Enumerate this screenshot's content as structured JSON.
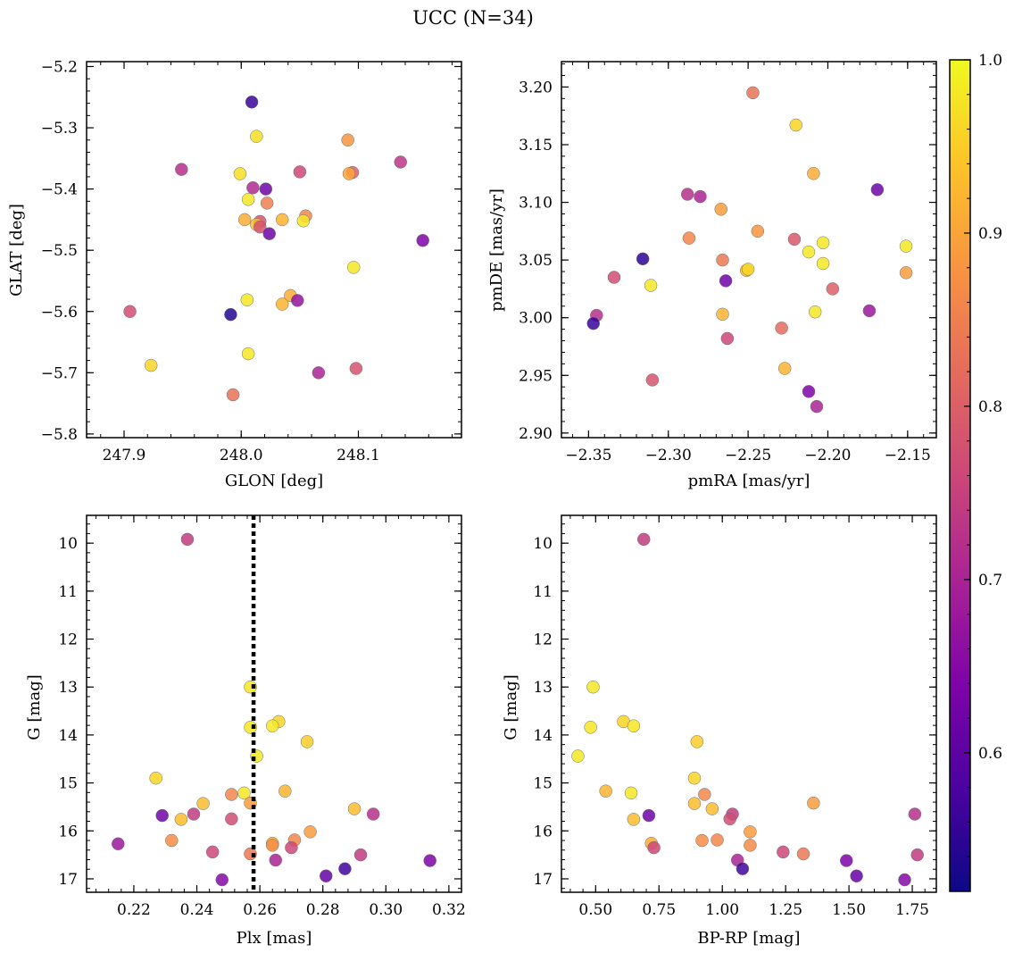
{
  "figure": {
    "title": "UCC (N=34)"
  },
  "colorbar": {
    "min": 0.52,
    "max": 1.0,
    "ticks": [
      0.6,
      0.7,
      0.8,
      0.9,
      1.0
    ],
    "tick_labels": [
      "0.6",
      "0.7",
      "0.8",
      "0.9",
      "1.0"
    ],
    "colormap": "plasma"
  },
  "chart_data": [
    {
      "type": "scatter",
      "title": "",
      "xlabel": "GLON [deg]",
      "ylabel": "GLAT [deg]",
      "xlim": [
        247.868,
        248.188
      ],
      "ylim": [
        -5.806,
        -5.192
      ],
      "xticks": [
        247.9,
        248.0,
        248.1
      ],
      "xtick_labels": [
        "247.9",
        "248.0",
        "248.1"
      ],
      "yticks": [
        -5.8,
        -5.7,
        -5.6,
        -5.5,
        -5.4,
        -5.3,
        -5.2
      ],
      "ytick_labels": [
        "−5.8",
        "−5.7",
        "−5.6",
        "−5.5",
        "−5.4",
        "−5.3",
        "−5.2"
      ],
      "y_inverted": false,
      "points": [
        {
          "x": 248.009,
          "y": -5.258,
          "c": 0.56
        },
        {
          "x": 248.013,
          "y": -5.314,
          "c": 0.97
        },
        {
          "x": 248.091,
          "y": -5.32,
          "c": 0.88
        },
        {
          "x": 248.136,
          "y": -5.356,
          "c": 0.73
        },
        {
          "x": 247.949,
          "y": -5.368,
          "c": 0.72
        },
        {
          "x": 248.05,
          "y": -5.372,
          "c": 0.76
        },
        {
          "x": 248.095,
          "y": -5.373,
          "c": 0.8
        },
        {
          "x": 248.092,
          "y": -5.375,
          "c": 0.9
        },
        {
          "x": 247.999,
          "y": -5.375,
          "c": 0.97
        },
        {
          "x": 248.01,
          "y": -5.398,
          "c": 0.71
        },
        {
          "x": 248.021,
          "y": -5.4,
          "c": 0.62
        },
        {
          "x": 248.006,
          "y": -5.417,
          "c": 0.98
        },
        {
          "x": 248.022,
          "y": -5.423,
          "c": 0.85
        },
        {
          "x": 248.055,
          "y": -5.444,
          "c": 0.86
        },
        {
          "x": 248.003,
          "y": -5.45,
          "c": 0.91
        },
        {
          "x": 248.035,
          "y": -5.45,
          "c": 0.92
        },
        {
          "x": 248.053,
          "y": -5.452,
          "c": 0.98
        },
        {
          "x": 248.016,
          "y": -5.453,
          "c": 0.78
        },
        {
          "x": 248.013,
          "y": -5.458,
          "c": 0.93
        },
        {
          "x": 248.016,
          "y": -5.462,
          "c": 0.78
        },
        {
          "x": 248.024,
          "y": -5.473,
          "c": 0.62
        },
        {
          "x": 248.155,
          "y": -5.484,
          "c": 0.64
        },
        {
          "x": 248.096,
          "y": -5.528,
          "c": 0.98
        },
        {
          "x": 248.042,
          "y": -5.574,
          "c": 0.91
        },
        {
          "x": 248.005,
          "y": -5.581,
          "c": 0.98
        },
        {
          "x": 248.048,
          "y": -5.582,
          "c": 0.67
        },
        {
          "x": 248.035,
          "y": -5.588,
          "c": 0.92
        },
        {
          "x": 247.905,
          "y": -5.6,
          "c": 0.77
        },
        {
          "x": 247.991,
          "y": -5.605,
          "c": 0.54
        },
        {
          "x": 248.006,
          "y": -5.669,
          "c": 0.98
        },
        {
          "x": 247.923,
          "y": -5.688,
          "c": 0.96
        },
        {
          "x": 248.098,
          "y": -5.693,
          "c": 0.78
        },
        {
          "x": 248.066,
          "y": -5.7,
          "c": 0.7
        },
        {
          "x": 247.993,
          "y": -5.736,
          "c": 0.83
        }
      ]
    },
    {
      "type": "scatter",
      "title": "",
      "xlabel": "pmRA [mas/yr]",
      "ylabel": "pmDE [mas/yr]",
      "xlim": [
        -2.367,
        -2.132
      ],
      "ylim": [
        2.896,
        3.222
      ],
      "xticks": [
        -2.35,
        -2.3,
        -2.25,
        -2.2,
        -2.15
      ],
      "xtick_labels": [
        "−2.35",
        "−2.30",
        "−2.25",
        "−2.20",
        "−2.15"
      ],
      "yticks": [
        2.9,
        2.95,
        3.0,
        3.05,
        3.1,
        3.15,
        3.2
      ],
      "ytick_labels": [
        "2.90",
        "2.95",
        "3.00",
        "3.05",
        "3.10",
        "3.15",
        "3.20"
      ],
      "y_inverted": false,
      "points": [
        {
          "x": -2.247,
          "y": 3.195,
          "c": 0.83
        },
        {
          "x": -2.22,
          "y": 3.167,
          "c": 0.96
        },
        {
          "x": -2.209,
          "y": 3.125,
          "c": 0.91
        },
        {
          "x": -2.169,
          "y": 3.111,
          "c": 0.62
        },
        {
          "x": -2.288,
          "y": 3.107,
          "c": 0.72
        },
        {
          "x": -2.28,
          "y": 3.105,
          "c": 0.7
        },
        {
          "x": -2.267,
          "y": 3.094,
          "c": 0.89
        },
        {
          "x": -2.244,
          "y": 3.075,
          "c": 0.88
        },
        {
          "x": -2.287,
          "y": 3.069,
          "c": 0.86
        },
        {
          "x": -2.221,
          "y": 3.068,
          "c": 0.79
        },
        {
          "x": -2.203,
          "y": 3.065,
          "c": 0.98
        },
        {
          "x": -2.151,
          "y": 3.062,
          "c": 0.98
        },
        {
          "x": -2.212,
          "y": 3.057,
          "c": 0.98
        },
        {
          "x": -2.316,
          "y": 3.051,
          "c": 0.55
        },
        {
          "x": -2.266,
          "y": 3.05,
          "c": 0.84
        },
        {
          "x": -2.203,
          "y": 3.047,
          "c": 0.98
        },
        {
          "x": -2.251,
          "y": 3.041,
          "c": 0.93
        },
        {
          "x": -2.25,
          "y": 3.042,
          "c": 0.96
        },
        {
          "x": -2.151,
          "y": 3.039,
          "c": 0.89
        },
        {
          "x": -2.334,
          "y": 3.035,
          "c": 0.77
        },
        {
          "x": -2.264,
          "y": 3.032,
          "c": 0.62
        },
        {
          "x": -2.311,
          "y": 3.028,
          "c": 0.98
        },
        {
          "x": -2.197,
          "y": 3.025,
          "c": 0.8
        },
        {
          "x": -2.174,
          "y": 3.006,
          "c": 0.68
        },
        {
          "x": -2.208,
          "y": 3.005,
          "c": 0.98
        },
        {
          "x": -2.266,
          "y": 3.003,
          "c": 0.92
        },
        {
          "x": -2.345,
          "y": 3.002,
          "c": 0.72
        },
        {
          "x": -2.347,
          "y": 2.995,
          "c": 0.56
        },
        {
          "x": -2.229,
          "y": 2.991,
          "c": 0.82
        },
        {
          "x": -2.263,
          "y": 2.982,
          "c": 0.76
        },
        {
          "x": -2.227,
          "y": 2.956,
          "c": 0.92
        },
        {
          "x": -2.31,
          "y": 2.946,
          "c": 0.78
        },
        {
          "x": -2.212,
          "y": 2.936,
          "c": 0.64
        },
        {
          "x": -2.207,
          "y": 2.923,
          "c": 0.7
        }
      ]
    },
    {
      "type": "scatter",
      "title": "",
      "xlabel": "Plx [mas]",
      "ylabel": "G [mag]",
      "xlim": [
        0.205,
        0.324
      ],
      "ylim": [
        17.28,
        9.42
      ],
      "xticks": [
        0.22,
        0.24,
        0.26,
        0.28,
        0.3,
        0.32
      ],
      "xtick_labels": [
        "0.22",
        "0.24",
        "0.26",
        "0.28",
        "0.30",
        "0.32"
      ],
      "yticks": [
        10,
        11,
        12,
        13,
        14,
        15,
        16,
        17
      ],
      "ytick_labels": [
        "10",
        "11",
        "12",
        "13",
        "14",
        "15",
        "16",
        "17"
      ],
      "y_inverted": true,
      "vline": {
        "x": 0.258,
        "style": "dotted"
      },
      "points": [
        {
          "x": 0.237,
          "y": 9.92,
          "c": 0.74
        },
        {
          "x": 0.257,
          "y": 13.0,
          "c": 0.98
        },
        {
          "x": 0.266,
          "y": 13.72,
          "c": 0.96
        },
        {
          "x": 0.264,
          "y": 13.81,
          "c": 0.98
        },
        {
          "x": 0.257,
          "y": 13.84,
          "c": 0.98
        },
        {
          "x": 0.275,
          "y": 14.14,
          "c": 0.95
        },
        {
          "x": 0.259,
          "y": 14.44,
          "c": 0.98
        },
        {
          "x": 0.227,
          "y": 14.9,
          "c": 0.96
        },
        {
          "x": 0.268,
          "y": 15.17,
          "c": 0.92
        },
        {
          "x": 0.255,
          "y": 15.21,
          "c": 0.98
        },
        {
          "x": 0.251,
          "y": 15.24,
          "c": 0.86
        },
        {
          "x": 0.257,
          "y": 15.42,
          "c": 0.89
        },
        {
          "x": 0.242,
          "y": 15.43,
          "c": 0.93
        },
        {
          "x": 0.29,
          "y": 15.54,
          "c": 0.93
        },
        {
          "x": 0.229,
          "y": 15.68,
          "c": 0.62
        },
        {
          "x": 0.239,
          "y": 15.65,
          "c": 0.74
        },
        {
          "x": 0.296,
          "y": 15.65,
          "c": 0.72
        },
        {
          "x": 0.235,
          "y": 15.76,
          "c": 0.93
        },
        {
          "x": 0.251,
          "y": 15.75,
          "c": 0.77
        },
        {
          "x": 0.276,
          "y": 16.02,
          "c": 0.89
        },
        {
          "x": 0.232,
          "y": 16.2,
          "c": 0.87
        },
        {
          "x": 0.271,
          "y": 16.19,
          "c": 0.86
        },
        {
          "x": 0.264,
          "y": 16.26,
          "c": 0.91
        },
        {
          "x": 0.264,
          "y": 16.3,
          "c": 0.87
        },
        {
          "x": 0.215,
          "y": 16.27,
          "c": 0.68
        },
        {
          "x": 0.27,
          "y": 16.35,
          "c": 0.76
        },
        {
          "x": 0.245,
          "y": 16.44,
          "c": 0.76
        },
        {
          "x": 0.257,
          "y": 16.48,
          "c": 0.84
        },
        {
          "x": 0.292,
          "y": 16.5,
          "c": 0.74
        },
        {
          "x": 0.265,
          "y": 16.61,
          "c": 0.7
        },
        {
          "x": 0.314,
          "y": 16.62,
          "c": 0.64
        },
        {
          "x": 0.287,
          "y": 16.79,
          "c": 0.57
        },
        {
          "x": 0.281,
          "y": 16.94,
          "c": 0.61
        },
        {
          "x": 0.248,
          "y": 17.02,
          "c": 0.65
        }
      ]
    },
    {
      "type": "scatter",
      "title": "",
      "xlabel": "BP-RP [mag]",
      "ylabel": "G [mag]",
      "xlim": [
        0.365,
        1.845
      ],
      "ylim": [
        17.28,
        9.42
      ],
      "xticks": [
        0.5,
        0.75,
        1.0,
        1.25,
        1.5,
        1.75
      ],
      "xtick_labels": [
        "0.50",
        "0.75",
        "1.00",
        "1.25",
        "1.50",
        "1.75"
      ],
      "yticks": [
        10,
        11,
        12,
        13,
        14,
        15,
        16,
        17
      ],
      "ytick_labels": [
        "10",
        "11",
        "12",
        "13",
        "14",
        "15",
        "16",
        "17"
      ],
      "y_inverted": true,
      "points": [
        {
          "x": 0.69,
          "y": 9.92,
          "c": 0.74
        },
        {
          "x": 0.49,
          "y": 13.0,
          "c": 0.98
        },
        {
          "x": 0.61,
          "y": 13.72,
          "c": 0.96
        },
        {
          "x": 0.65,
          "y": 13.81,
          "c": 0.98
        },
        {
          "x": 0.48,
          "y": 13.84,
          "c": 0.98
        },
        {
          "x": 0.9,
          "y": 14.14,
          "c": 0.95
        },
        {
          "x": 0.43,
          "y": 14.44,
          "c": 0.98
        },
        {
          "x": 0.89,
          "y": 14.9,
          "c": 0.96
        },
        {
          "x": 0.54,
          "y": 15.17,
          "c": 0.92
        },
        {
          "x": 0.64,
          "y": 15.21,
          "c": 0.98
        },
        {
          "x": 0.93,
          "y": 15.24,
          "c": 0.86
        },
        {
          "x": 1.36,
          "y": 15.42,
          "c": 0.89
        },
        {
          "x": 0.89,
          "y": 15.43,
          "c": 0.93
        },
        {
          "x": 0.96,
          "y": 15.54,
          "c": 0.93
        },
        {
          "x": 0.71,
          "y": 15.68,
          "c": 0.62
        },
        {
          "x": 1.04,
          "y": 15.65,
          "c": 0.74
        },
        {
          "x": 1.76,
          "y": 15.65,
          "c": 0.72
        },
        {
          "x": 0.65,
          "y": 15.76,
          "c": 0.93
        },
        {
          "x": 1.03,
          "y": 15.75,
          "c": 0.77
        },
        {
          "x": 1.11,
          "y": 16.02,
          "c": 0.89
        },
        {
          "x": 0.92,
          "y": 16.2,
          "c": 0.87
        },
        {
          "x": 0.98,
          "y": 16.19,
          "c": 0.86
        },
        {
          "x": 0.72,
          "y": 16.26,
          "c": 0.91
        },
        {
          "x": 1.11,
          "y": 16.3,
          "c": 0.87
        },
        {
          "x": 0.73,
          "y": 16.35,
          "c": 0.76
        },
        {
          "x": 1.24,
          "y": 16.44,
          "c": 0.76
        },
        {
          "x": 1.32,
          "y": 16.48,
          "c": 0.84
        },
        {
          "x": 1.77,
          "y": 16.5,
          "c": 0.74
        },
        {
          "x": 1.06,
          "y": 16.61,
          "c": 0.7
        },
        {
          "x": 1.49,
          "y": 16.62,
          "c": 0.64
        },
        {
          "x": 1.08,
          "y": 16.79,
          "c": 0.57
        },
        {
          "x": 1.53,
          "y": 16.94,
          "c": 0.61
        },
        {
          "x": 1.72,
          "y": 17.02,
          "c": 0.65
        }
      ]
    }
  ]
}
